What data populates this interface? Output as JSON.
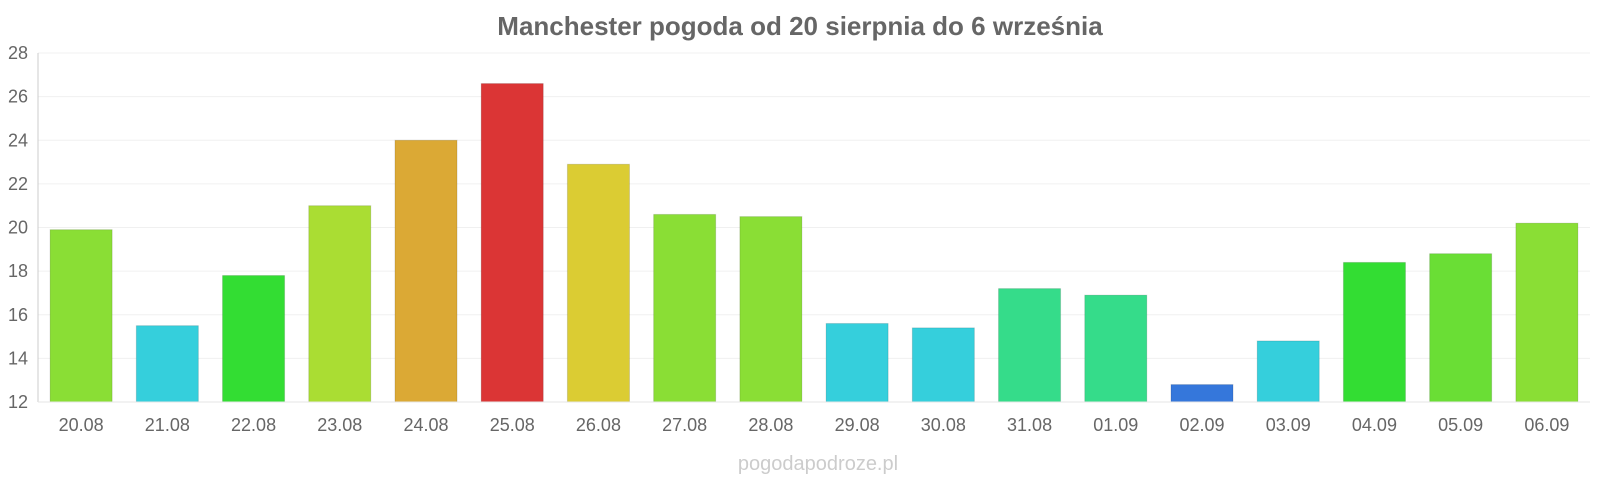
{
  "chart_data": {
    "type": "bar",
    "title": "Manchester pogoda od 20 sierpnia do 6 września",
    "xlabel": "",
    "ylabel": "",
    "categories": [
      "20.08",
      "21.08",
      "22.08",
      "23.08",
      "24.08",
      "25.08",
      "26.08",
      "27.08",
      "28.08",
      "29.08",
      "30.08",
      "31.08",
      "01.09",
      "02.09",
      "03.09",
      "04.09",
      "05.09",
      "06.09"
    ],
    "values": [
      19.9,
      15.5,
      17.8,
      21.0,
      24.0,
      26.6,
      22.9,
      20.6,
      20.5,
      15.6,
      15.4,
      17.2,
      16.9,
      12.8,
      14.8,
      18.4,
      18.8,
      20.2
    ],
    "colors": [
      "#8ade35",
      "#35cfdc",
      "#33dd33",
      "#aadd33",
      "#dba935",
      "#db3535",
      "#dbcc33",
      "#8ade35",
      "#8ade35",
      "#35cfdc",
      "#35cfdc",
      "#35dc8a",
      "#35dc8a",
      "#3577db",
      "#35cfdc",
      "#33dd33",
      "#6ade35",
      "#8ade35"
    ],
    "ylim": [
      12,
      28
    ],
    "yticks": [
      12,
      14,
      16,
      18,
      20,
      22,
      24,
      26,
      28
    ],
    "grid": true,
    "legend": "none"
  },
  "watermark": "pogodapodroze.pl"
}
